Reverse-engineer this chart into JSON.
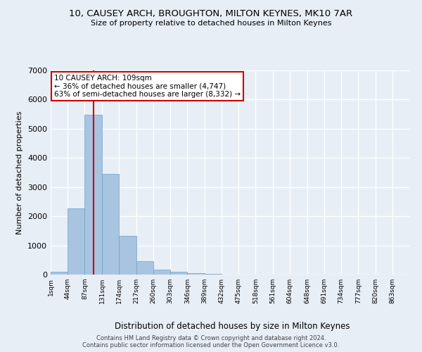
{
  "title": "10, CAUSEY ARCH, BROUGHTON, MILTON KEYNES, MK10 7AR",
  "subtitle": "Size of property relative to detached houses in Milton Keynes",
  "xlabel": "Distribution of detached houses by size in Milton Keynes",
  "ylabel": "Number of detached properties",
  "footer_line1": "Contains HM Land Registry data © Crown copyright and database right 2024.",
  "footer_line2": "Contains public sector information licensed under the Open Government Licence v3.0.",
  "bin_labels": [
    "1sqm",
    "44sqm",
    "87sqm",
    "131sqm",
    "174sqm",
    "217sqm",
    "260sqm",
    "303sqm",
    "346sqm",
    "389sqm",
    "432sqm",
    "475sqm",
    "518sqm",
    "561sqm",
    "604sqm",
    "648sqm",
    "691sqm",
    "734sqm",
    "777sqm",
    "820sqm",
    "863sqm"
  ],
  "bar_values": [
    100,
    2280,
    5480,
    3450,
    1320,
    470,
    170,
    105,
    60,
    20,
    0,
    0,
    0,
    0,
    0,
    0,
    0,
    0,
    0,
    0
  ],
  "bar_color": "#a8c4e0",
  "bar_edge_color": "#6aa0c7",
  "background_color": "#e8eef5",
  "grid_color": "#ffffff",
  "ylim": [
    0,
    7000
  ],
  "yticks": [
    0,
    1000,
    2000,
    3000,
    4000,
    5000,
    6000,
    7000
  ],
  "property_size_sqm": 109,
  "annotation_line1": "10 CAUSEY ARCH: 109sqm",
  "annotation_line2": "← 36% of detached houses are smaller (4,747)",
  "annotation_line3": "63% of semi-detached houses are larger (8,332) →",
  "annotation_box_color": "#ffffff",
  "annotation_border_color": "#cc0000",
  "red_line_color": "#cc0000",
  "bin_width": 43
}
